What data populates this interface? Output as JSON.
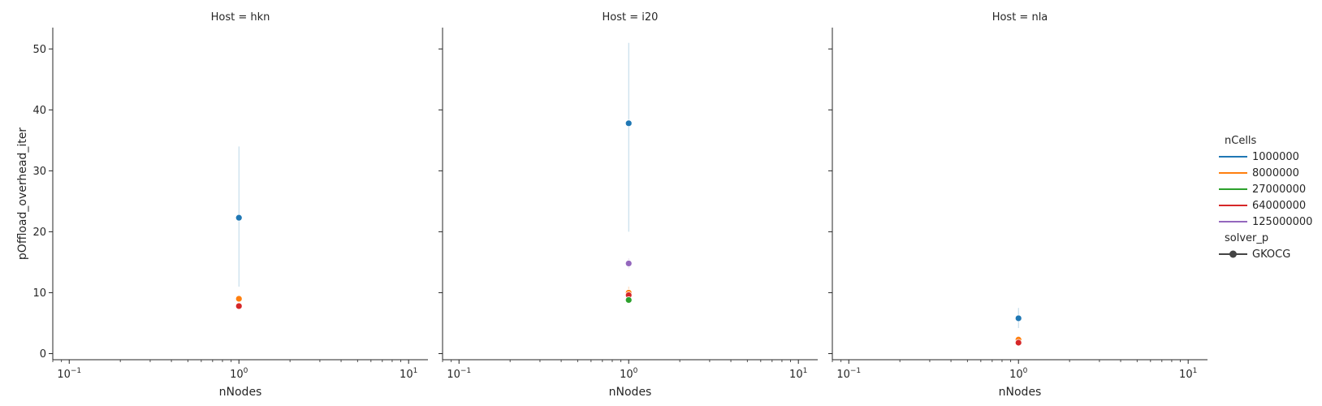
{
  "chart_data": {
    "type": "scatter",
    "xscale": "log",
    "xlim": [
      0.08,
      13
    ],
    "ylim": [
      -1,
      53.5
    ],
    "xticks": [
      {
        "value": 0.1,
        "base": "10",
        "exp": "−1"
      },
      {
        "value": 1,
        "base": "10",
        "exp": "0"
      },
      {
        "value": 10,
        "base": "10",
        "exp": "1"
      }
    ],
    "yticks": [
      0,
      10,
      20,
      30,
      40,
      50
    ],
    "xlabel": "nNodes",
    "ylabel": "pOffload_overhead_iter",
    "grid": false,
    "panels": [
      {
        "title": "Host = hkn",
        "points": [
          {
            "series": "1000000",
            "x": 1,
            "y": 22.3,
            "ci": [
              11.0,
              34.0
            ]
          },
          {
            "series": "8000000",
            "x": 1,
            "y": 9.0,
            "ci": [
              8.2,
              9.6
            ]
          },
          {
            "series": "64000000",
            "x": 1,
            "y": 7.8,
            "ci": [
              7.5,
              8.1
            ]
          }
        ]
      },
      {
        "title": "Host = i20",
        "points": [
          {
            "series": "1000000",
            "x": 1,
            "y": 37.8,
            "ci": [
              20.0,
              51.0
            ]
          },
          {
            "series": "125000000",
            "x": 1,
            "y": 14.8,
            "ci": [
              14.0,
              15.6
            ]
          },
          {
            "series": "8000000",
            "x": 1,
            "y": 10.0,
            "ci": [
              9.0,
              11.0
            ]
          },
          {
            "series": "64000000",
            "x": 1,
            "y": 9.6,
            "ci": [
              9.2,
              10.0
            ]
          },
          {
            "series": "27000000",
            "x": 1,
            "y": 8.8,
            "ci": [
              8.5,
              9.1
            ]
          }
        ]
      },
      {
        "title": "Host = nla",
        "points": [
          {
            "series": "1000000",
            "x": 1,
            "y": 5.8,
            "ci": [
              4.2,
              7.5
            ]
          },
          {
            "series": "8000000",
            "x": 1,
            "y": 2.3,
            "ci": [
              2.0,
              2.6
            ]
          },
          {
            "series": "64000000",
            "x": 1,
            "y": 1.8,
            "ci": [
              1.5,
              2.1
            ]
          }
        ]
      }
    ],
    "legend": {
      "placement": "right",
      "hue_title": "nCells",
      "hue_entries": [
        {
          "label": "1000000",
          "color": "#1f77b4"
        },
        {
          "label": "8000000",
          "color": "#ff7f0e"
        },
        {
          "label": "27000000",
          "color": "#2ca02c"
        },
        {
          "label": "64000000",
          "color": "#d62728"
        },
        {
          "label": "125000000",
          "color": "#9467bd"
        }
      ],
      "style_title": "solver_p",
      "style_entries": [
        {
          "label": "GKOCG",
          "color": "#444444"
        }
      ]
    }
  }
}
